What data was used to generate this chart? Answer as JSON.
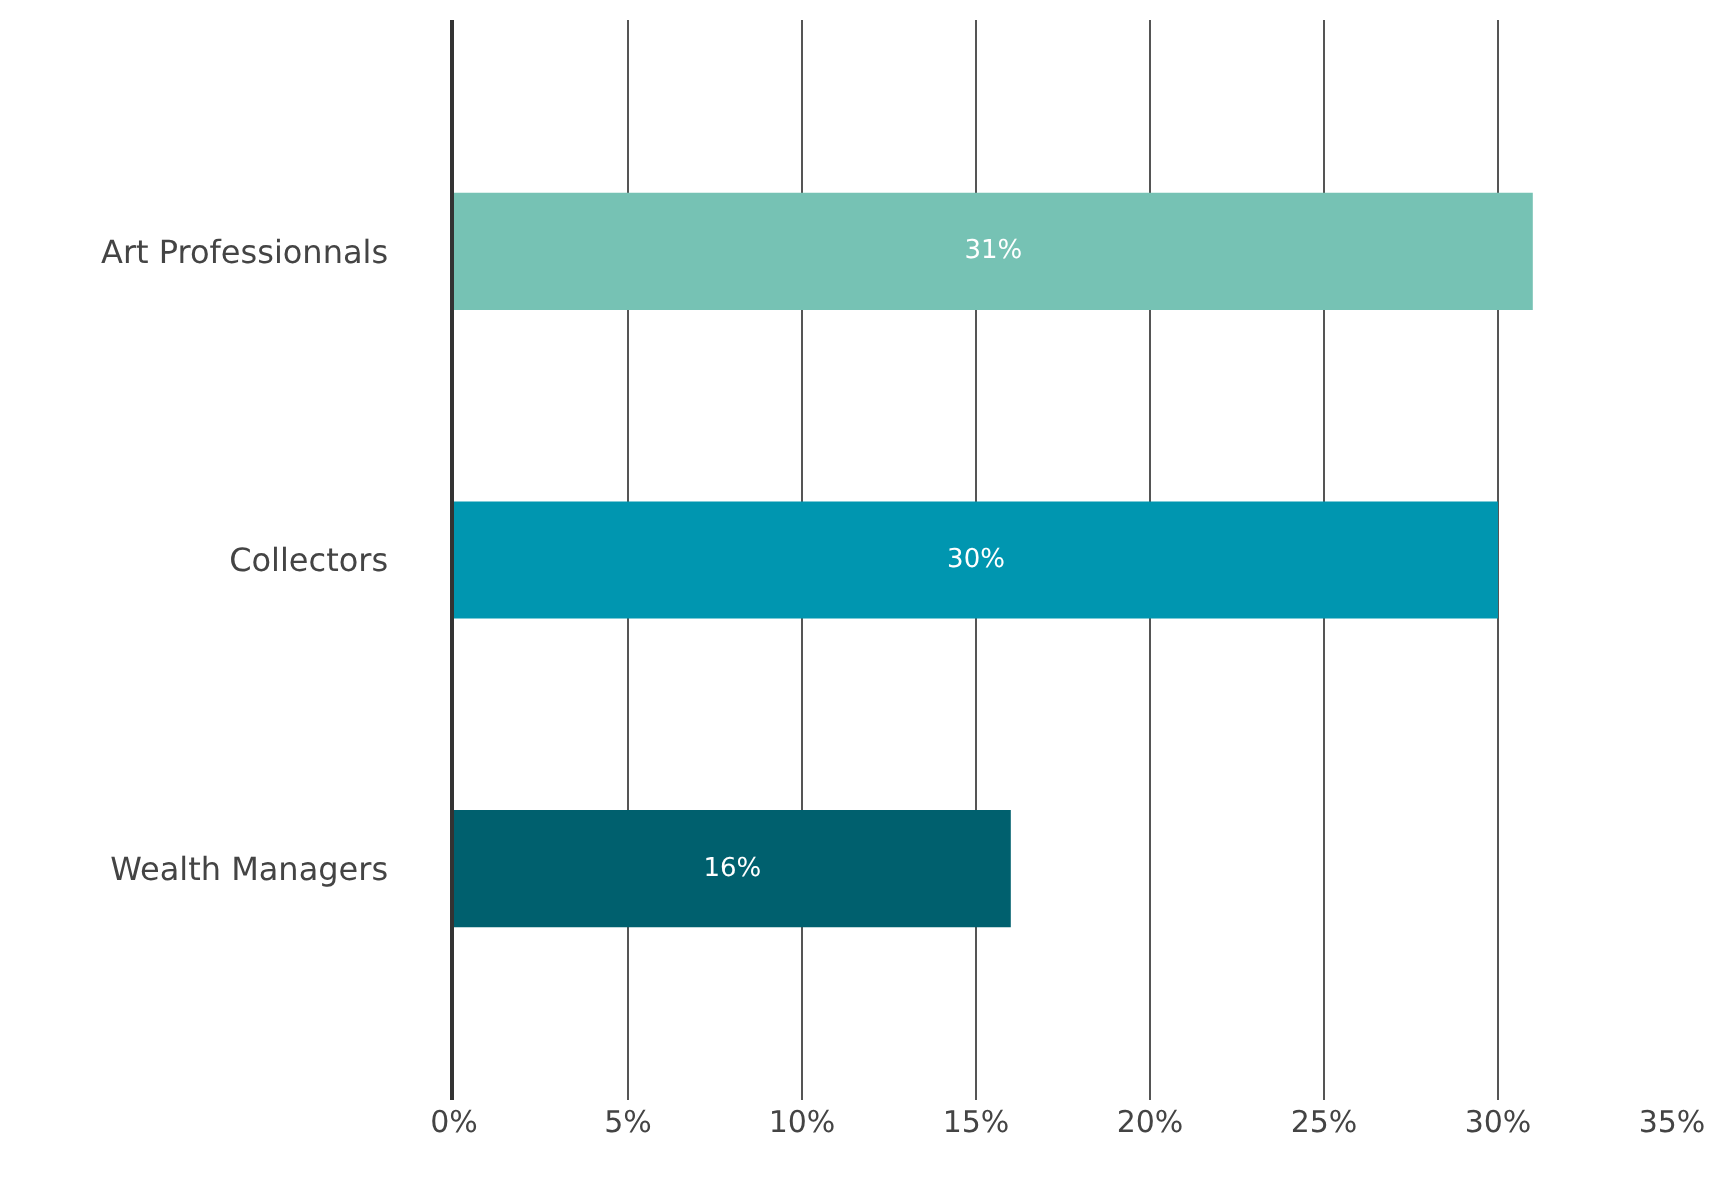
{
  "chart_data": {
    "type": "bar",
    "orientation": "horizontal",
    "categories": [
      "Art Professionnals",
      "Collectors",
      "Wealth Managers"
    ],
    "values": [
      31,
      30,
      16
    ],
    "colors": [
      "#76c2b4",
      "#0096b0",
      "#00606e"
    ],
    "value_labels": [
      "31%",
      "30%",
      "16%"
    ],
    "xlim": [
      0,
      35
    ],
    "xticks": [
      {
        "value": 0,
        "label": "0%"
      },
      {
        "value": 5,
        "label": "5%"
      },
      {
        "value": 10,
        "label": "10%"
      },
      {
        "value": 15,
        "label": "15%"
      },
      {
        "value": 20,
        "label": "20%"
      },
      {
        "value": 25,
        "label": "25%"
      },
      {
        "value": 30,
        "label": "30%"
      },
      {
        "value": 35,
        "label": "35%"
      }
    ],
    "grid": "x",
    "legend": false
  }
}
